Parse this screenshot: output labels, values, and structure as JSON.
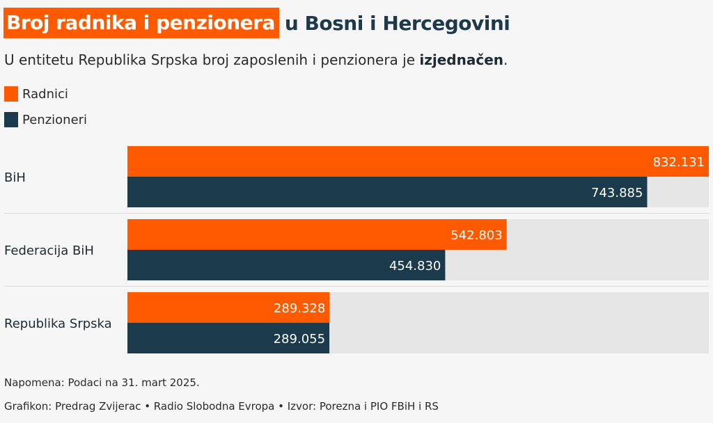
{
  "header": {
    "title_highlight": "Broj radnika i penzionera",
    "title_rest": "u Bosni i Hercegovini",
    "subtitle_pre": "U entitetu Republika Srpska broj zaposlenih i penzionera je ",
    "subtitle_bold": "izjednačen",
    "subtitle_post": "."
  },
  "legend": [
    {
      "label": "Radnici",
      "color": "#ff5a00"
    },
    {
      "label": "Penzioneri",
      "color": "#1b3a4b"
    }
  ],
  "chart_data": {
    "type": "bar",
    "orientation": "horizontal",
    "categories": [
      "BiH",
      "Federacija BiH",
      "Republika Srpska"
    ],
    "series": [
      {
        "name": "Radnici",
        "color": "#ff5a00",
        "values": [
          832131,
          542803,
          289328
        ],
        "labels": [
          "832.131",
          "542.803",
          "289.328"
        ]
      },
      {
        "name": "Penzioneri",
        "color": "#1b3a4b",
        "values": [
          743885,
          454830,
          289055
        ],
        "labels": [
          "743.885",
          "454.830",
          "289.055"
        ]
      }
    ],
    "xlim": [
      0,
      832131
    ],
    "background_track_color": "#e6e6e6",
    "grid": false,
    "legend_position": "top-left"
  },
  "footer": {
    "note": "Napomena: Podaci na 31. mart 2025.",
    "credit": "Grafikon: Predrag Zvijerac • Radio Slobodna Evropa • Izvor: Porezna i PIO FBiH i RS"
  }
}
